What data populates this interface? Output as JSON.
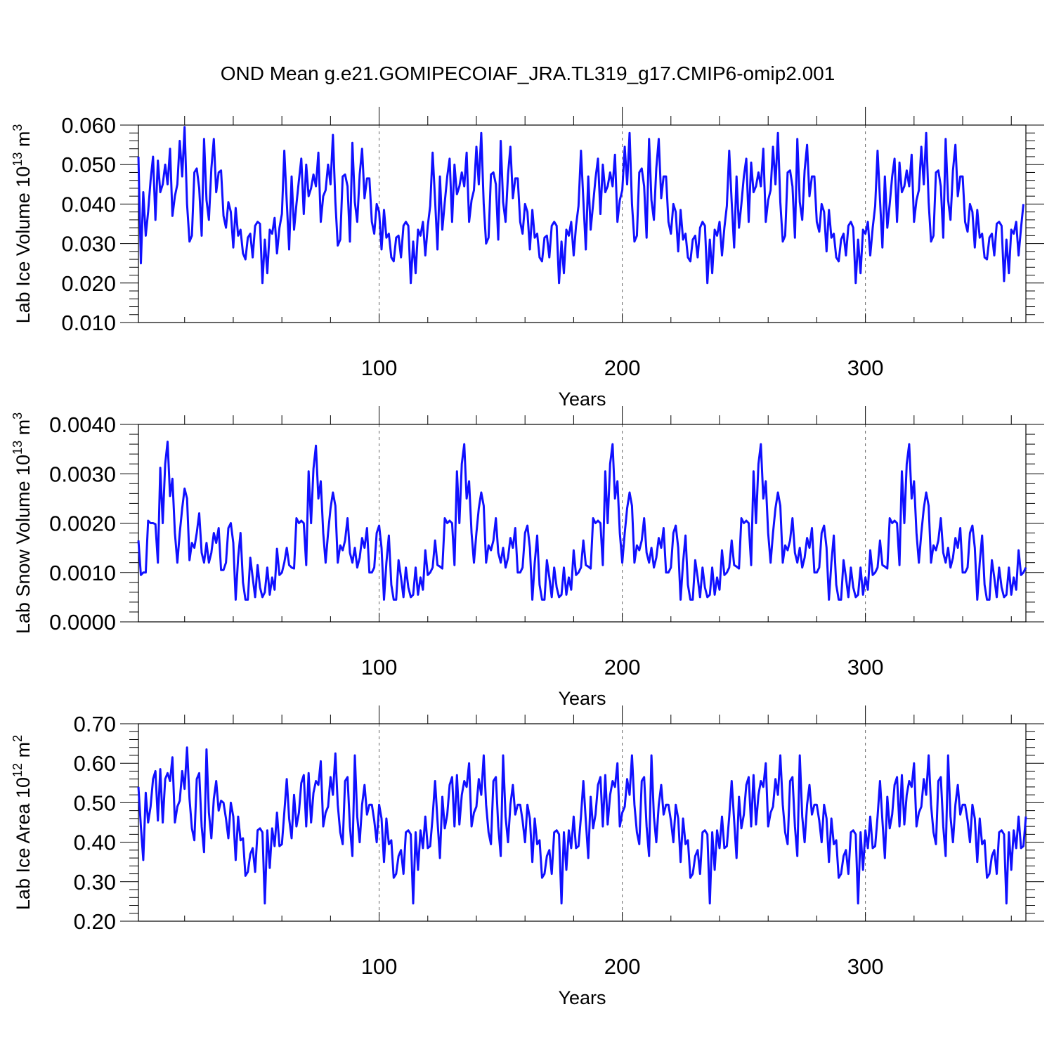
{
  "figure": {
    "title": "OND Mean g.e21.GOMIPECOIAF_JRA.TL319_g17.CMIP6-omip2.001"
  },
  "chart_data": [
    {
      "type": "line",
      "name": "ice-volume",
      "title": "OND Mean g.e21.GOMIPECOIAF_JRA.TL319_g17.CMIP6-omip2.001",
      "xlabel": "Years",
      "ylabel_text": "Lab Ice Volume 10",
      "ylabel_exp": "13",
      "ylabel_unit": " m",
      "ylabel_unit_exp": "3",
      "xlim": [
        1,
        366
      ],
      "ylim": [
        0.01,
        0.06
      ],
      "xticks": [
        100,
        200,
        300
      ],
      "xtick_labels": [
        "100",
        "200",
        "300"
      ],
      "yticks": [
        0.01,
        0.02,
        0.03,
        0.04,
        0.05,
        0.06
      ],
      "ytick_labels": [
        "0.010",
        "0.020",
        "0.030",
        "0.040",
        "0.050",
        "0.060"
      ],
      "color": "#1010ff",
      "x_start": 1,
      "values": [
        0.052,
        0.025,
        0.043,
        0.032,
        0.038,
        0.046,
        0.052,
        0.036,
        0.051,
        0.043,
        0.045,
        0.05,
        0.045,
        0.054,
        0.037,
        0.042,
        0.045,
        0.056,
        0.047,
        0.0595,
        0.04,
        0.0305,
        0.032,
        0.048,
        0.049,
        0.044,
        0.032,
        0.0565,
        0.041,
        0.036,
        0.049,
        0.0565,
        0.043,
        0.048,
        0.0485,
        0.037,
        0.034,
        0.0405,
        0.038,
        0.029,
        0.039,
        0.032,
        0.0335,
        0.0275,
        0.026,
        0.0315,
        0.0325,
        0.0265,
        0.0345,
        0.0355,
        0.035,
        0.02,
        0.031,
        0.0225,
        0.0335,
        0.0325,
        0.0365,
        0.0275,
        0.034,
        0.0375,
        0.0535,
        0.0405,
        0.0285,
        0.047,
        0.0335,
        0.04,
        0.046,
        0.0515,
        0.0375,
        0.05,
        0.042,
        0.044,
        0.0475,
        0.0445,
        0.053,
        0.0355,
        0.042,
        0.0435,
        0.05,
        0.045,
        0.0575,
        0.0405,
        0.0295,
        0.031,
        0.047,
        0.0475,
        0.0445,
        0.0305,
        0.0555,
        0.0405,
        0.0355,
        0.0475,
        0.054,
        0.0415,
        0.0465,
        0.0465,
        0.0355,
        0.0325,
        0.04,
        0.038,
        0.0285,
        0.0385,
        0.0315,
        0.0325,
        0.0265,
        0.0255,
        0.0315,
        0.032,
        0.0265,
        0.0345,
        0.0355,
        0.0345,
        0.02,
        0.0305,
        0.0225,
        0.0335,
        0.032,
        0.0355,
        0.027,
        0.0345,
        0.0395,
        0.053,
        0.041,
        0.0285,
        0.047,
        0.0335,
        0.0405,
        0.047,
        0.0515,
        0.0355,
        0.05,
        0.0425,
        0.0445,
        0.048,
        0.0445,
        0.053,
        0.0355,
        0.041,
        0.0435,
        0.0545,
        0.045,
        0.058,
        0.04,
        0.03,
        0.0315,
        0.0475,
        0.048,
        0.045,
        0.031,
        0.056,
        0.0405,
        0.0355,
        0.0475,
        0.0545,
        0.0415,
        0.0465,
        0.0465,
        0.0355,
        0.0325,
        0.04,
        0.038,
        0.0285,
        0.0385,
        0.0315,
        0.0325,
        0.0265,
        0.0255,
        0.0315,
        0.032,
        0.0265,
        0.0345,
        0.0355,
        0.0345,
        0.02,
        0.0305,
        0.0225,
        0.0335,
        0.032,
        0.0355,
        0.027,
        0.0345,
        0.0395,
        0.0535,
        0.041,
        0.0285,
        0.047,
        0.0335,
        0.04,
        0.0465,
        0.0515,
        0.0375,
        0.05,
        0.043,
        0.0445,
        0.048,
        0.0445,
        0.0525,
        0.0355,
        0.041,
        0.0435,
        0.0545,
        0.045,
        0.058,
        0.04,
        0.0305,
        0.032,
        0.048,
        0.049,
        0.0445,
        0.0315,
        0.0565,
        0.041,
        0.036,
        0.049,
        0.0565,
        0.0415,
        0.047,
        0.047,
        0.0355,
        0.0325,
        0.04,
        0.038,
        0.028,
        0.0385,
        0.031,
        0.0325,
        0.0265,
        0.0255,
        0.031,
        0.032,
        0.0265,
        0.034,
        0.0355,
        0.0345,
        0.02,
        0.031,
        0.0225,
        0.0335,
        0.032,
        0.0355,
        0.027,
        0.034,
        0.0395,
        0.0535,
        0.0405,
        0.029,
        0.047,
        0.034,
        0.04,
        0.047,
        0.0515,
        0.0355,
        0.0505,
        0.043,
        0.0445,
        0.048,
        0.0445,
        0.054,
        0.0355,
        0.041,
        0.0435,
        0.0545,
        0.045,
        0.058,
        0.0405,
        0.0305,
        0.032,
        0.048,
        0.0485,
        0.0445,
        0.0315,
        0.0565,
        0.0405,
        0.036,
        0.0485,
        0.055,
        0.042,
        0.047,
        0.047,
        0.0355,
        0.033,
        0.04,
        0.038,
        0.028,
        0.0385,
        0.0315,
        0.0325,
        0.0265,
        0.0255,
        0.031,
        0.0325,
        0.027,
        0.0345,
        0.0355,
        0.034,
        0.02,
        0.031,
        0.0225,
        0.0335,
        0.0325,
        0.0355,
        0.027,
        0.034,
        0.0395,
        0.0535,
        0.041,
        0.029,
        0.047,
        0.034,
        0.04,
        0.047,
        0.0515,
        0.0355,
        0.0505,
        0.043,
        0.0445,
        0.0485,
        0.0445,
        0.0525,
        0.0355,
        0.041,
        0.0435,
        0.0545,
        0.045,
        0.058,
        0.0405,
        0.0305,
        0.032,
        0.048,
        0.0485,
        0.0445,
        0.0315,
        0.0565,
        0.041,
        0.036,
        0.0485,
        0.055,
        0.042,
        0.047,
        0.047,
        0.0355,
        0.033,
        0.04,
        0.038,
        0.029,
        0.0385,
        0.0315,
        0.0325,
        0.0265,
        0.026,
        0.0315,
        0.0325,
        0.027,
        0.035,
        0.0355,
        0.0345,
        0.0205,
        0.031,
        0.0225,
        0.0335,
        0.0325,
        0.0355,
        0.027,
        0.034,
        0.04
      ]
    },
    {
      "type": "line",
      "name": "snow-volume",
      "xlabel": "Years",
      "ylabel_text": "Lab Snow Volume 10",
      "ylabel_exp": "13",
      "ylabel_unit": " m",
      "ylabel_unit_exp": "3",
      "xlim": [
        1,
        366
      ],
      "ylim": [
        0.0,
        0.004
      ],
      "xticks": [
        100,
        200,
        300
      ],
      "xtick_labels": [
        "100",
        "200",
        "300"
      ],
      "yticks": [
        0.0,
        0.001,
        0.002,
        0.003,
        0.004
      ],
      "ytick_labels": [
        "0.0000",
        "0.0010",
        "0.0020",
        "0.0030",
        "0.0040"
      ],
      "color": "#1010ff",
      "x_start": 1,
      "values": [
        0.00165,
        0.00095,
        0.001,
        0.001,
        0.00205,
        0.002,
        0.002,
        0.00198,
        0.0012,
        0.00312,
        0.002,
        0.0032,
        0.00365,
        0.00255,
        0.0029,
        0.0018,
        0.0012,
        0.0018,
        0.0023,
        0.0027,
        0.0025,
        0.00125,
        0.0016,
        0.0015,
        0.0018,
        0.0022,
        0.0014,
        0.0012,
        0.0016,
        0.0012,
        0.0014,
        0.0018,
        0.0016,
        0.0019,
        0.00105,
        0.00105,
        0.0012,
        0.0019,
        0.002,
        0.0016,
        0.00045,
        0.0013,
        0.0018,
        0.0008,
        0.00045,
        0.00045,
        0.0013,
        0.0009,
        0.0005,
        0.00115,
        0.0007,
        0.0005,
        0.0006,
        0.0011,
        0.00055,
        0.0009,
        0.00065,
        0.00148,
        0.00095,
        0.001,
        0.0012,
        0.0015,
        0.00115,
        0.0011,
        0.00108,
        0.0021,
        0.002,
        0.00205,
        0.002,
        0.00115,
        0.00305,
        0.002,
        0.0031,
        0.00357,
        0.0025,
        0.00285,
        0.0018,
        0.0012,
        0.0018,
        0.0023,
        0.00262,
        0.00235,
        0.0012,
        0.00155,
        0.00145,
        0.00165,
        0.0021,
        0.0014,
        0.0012,
        0.0015,
        0.0011,
        0.0013,
        0.0017,
        0.0015,
        0.0019,
        0.001,
        0.001,
        0.0011,
        0.0018,
        0.00195,
        0.0015,
        0.00045,
        0.0012,
        0.00175,
        0.00075,
        0.00045,
        0.00045,
        0.00125,
        0.0009,
        0.0005,
        0.0011,
        0.0007,
        0.0005,
        0.00055,
        0.0011,
        0.00055,
        0.0009,
        0.00065,
        0.00145,
        0.00095,
        0.001,
        0.0011,
        0.00165,
        0.00115,
        0.00112,
        0.00108,
        0.0021,
        0.002,
        0.00205,
        0.002,
        0.00115,
        0.00305,
        0.002,
        0.0032,
        0.0036,
        0.0025,
        0.00285,
        0.0018,
        0.0012,
        0.0018,
        0.0023,
        0.00262,
        0.00235,
        0.0012,
        0.00155,
        0.00145,
        0.00165,
        0.0021,
        0.0014,
        0.0012,
        0.0015,
        0.0011,
        0.0013,
        0.0017,
        0.0015,
        0.0019,
        0.001,
        0.001,
        0.0011,
        0.0018,
        0.00195,
        0.0015,
        0.00045,
        0.0012,
        0.00175,
        0.00075,
        0.00045,
        0.00045,
        0.00125,
        0.0009,
        0.0005,
        0.0011,
        0.0007,
        0.0005,
        0.00055,
        0.0011,
        0.00055,
        0.0009,
        0.00065,
        0.00145,
        0.00095,
        0.001,
        0.0011,
        0.00165,
        0.00115,
        0.00112,
        0.00108,
        0.0021,
        0.002,
        0.00205,
        0.002,
        0.00115,
        0.00305,
        0.002,
        0.0032,
        0.0036,
        0.0025,
        0.00285,
        0.0018,
        0.0012,
        0.0018,
        0.0023,
        0.00262,
        0.00235,
        0.0012,
        0.00155,
        0.00145,
        0.00165,
        0.0021,
        0.0014,
        0.0012,
        0.0015,
        0.0011,
        0.0013,
        0.0017,
        0.0015,
        0.0019,
        0.001,
        0.001,
        0.0011,
        0.0018,
        0.00195,
        0.0015,
        0.00045,
        0.0012,
        0.00175,
        0.00075,
        0.00045,
        0.00045,
        0.00125,
        0.0009,
        0.0005,
        0.0011,
        0.0007,
        0.0005,
        0.00055,
        0.0011,
        0.00055,
        0.0009,
        0.00065,
        0.00145,
        0.00095,
        0.001,
        0.0011,
        0.00165,
        0.00115,
        0.00112,
        0.00108,
        0.0021,
        0.002,
        0.00205,
        0.002,
        0.00115,
        0.00305,
        0.002,
        0.0032,
        0.0036,
        0.0025,
        0.00285,
        0.0018,
        0.0012,
        0.0018,
        0.0023,
        0.00262,
        0.00235,
        0.0012,
        0.00155,
        0.00145,
        0.00165,
        0.0021,
        0.0014,
        0.0012,
        0.0015,
        0.0011,
        0.0013,
        0.0017,
        0.0015,
        0.0019,
        0.001,
        0.001,
        0.0011,
        0.0018,
        0.00195,
        0.0015,
        0.00045,
        0.0012,
        0.00175,
        0.00075,
        0.00045,
        0.00045,
        0.00125,
        0.0009,
        0.0005,
        0.0011,
        0.0007,
        0.0005,
        0.00055,
        0.0011,
        0.00055,
        0.0009,
        0.00065,
        0.00145,
        0.00095,
        0.001,
        0.0011,
        0.00165,
        0.00115,
        0.00112,
        0.00108,
        0.0021,
        0.002,
        0.00205,
        0.002,
        0.00115,
        0.00305,
        0.002,
        0.0032,
        0.0036,
        0.0025,
        0.00285,
        0.0018,
        0.0012,
        0.0018,
        0.0023,
        0.00262,
        0.00235,
        0.0012,
        0.00155,
        0.00145,
        0.00165,
        0.0021,
        0.0014,
        0.0012,
        0.0015,
        0.0011,
        0.0013,
        0.0017,
        0.0015,
        0.0019,
        0.001,
        0.001,
        0.0011,
        0.0018,
        0.00195,
        0.0015,
        0.00045,
        0.0012,
        0.00175,
        0.00075,
        0.00045,
        0.00045,
        0.00125,
        0.0009,
        0.0005,
        0.0011,
        0.0007,
        0.0005,
        0.00055,
        0.0011,
        0.00055,
        0.0009,
        0.00065,
        0.00145,
        0.00095,
        0.001,
        0.0011
      ]
    },
    {
      "type": "line",
      "name": "ice-area",
      "xlabel": "Years",
      "ylabel_text": "Lab Ice Area 10",
      "ylabel_exp": "12",
      "ylabel_unit": " m",
      "ylabel_unit_exp": "2",
      "xlim": [
        1,
        366
      ],
      "ylim": [
        0.2,
        0.7
      ],
      "xticks": [
        100,
        200,
        300
      ],
      "xtick_labels": [
        "100",
        "200",
        "300"
      ],
      "yticks": [
        0.2,
        0.3,
        0.4,
        0.5,
        0.6,
        0.7
      ],
      "ytick_labels": [
        "0.20",
        "0.30",
        "0.40",
        "0.50",
        "0.60",
        "0.70"
      ],
      "color": "#1010ff",
      "x_start": 1,
      "values": [
        0.54,
        0.44,
        0.355,
        0.525,
        0.45,
        0.49,
        0.56,
        0.58,
        0.455,
        0.585,
        0.45,
        0.56,
        0.575,
        0.555,
        0.615,
        0.45,
        0.49,
        0.505,
        0.58,
        0.535,
        0.64,
        0.51,
        0.435,
        0.405,
        0.56,
        0.575,
        0.44,
        0.375,
        0.635,
        0.475,
        0.41,
        0.51,
        0.555,
        0.48,
        0.505,
        0.5,
        0.46,
        0.41,
        0.5,
        0.465,
        0.355,
        0.465,
        0.405,
        0.41,
        0.315,
        0.325,
        0.37,
        0.385,
        0.325,
        0.43,
        0.435,
        0.425,
        0.245,
        0.43,
        0.335,
        0.435,
        0.39,
        0.475,
        0.39,
        0.395,
        0.475,
        0.56,
        0.46,
        0.41,
        0.52,
        0.44,
        0.475,
        0.55,
        0.57,
        0.44,
        0.575,
        0.45,
        0.525,
        0.555,
        0.545,
        0.605,
        0.44,
        0.475,
        0.49,
        0.565,
        0.52,
        0.625,
        0.495,
        0.425,
        0.395,
        0.555,
        0.565,
        0.44,
        0.365,
        0.62,
        0.465,
        0.4,
        0.495,
        0.545,
        0.47,
        0.495,
        0.495,
        0.455,
        0.4,
        0.495,
        0.46,
        0.35,
        0.46,
        0.395,
        0.405,
        0.31,
        0.32,
        0.365,
        0.38,
        0.32,
        0.425,
        0.43,
        0.42,
        0.245,
        0.425,
        0.33,
        0.43,
        0.385,
        0.465,
        0.385,
        0.39,
        0.465,
        0.555,
        0.455,
        0.36,
        0.515,
        0.435,
        0.47,
        0.545,
        0.565,
        0.44,
        0.57,
        0.445,
        0.52,
        0.555,
        0.54,
        0.6,
        0.44,
        0.475,
        0.49,
        0.56,
        0.52,
        0.62,
        0.495,
        0.425,
        0.395,
        0.555,
        0.565,
        0.44,
        0.365,
        0.62,
        0.465,
        0.4,
        0.495,
        0.545,
        0.47,
        0.495,
        0.495,
        0.455,
        0.4,
        0.495,
        0.46,
        0.35,
        0.46,
        0.395,
        0.405,
        0.31,
        0.32,
        0.365,
        0.38,
        0.32,
        0.425,
        0.43,
        0.42,
        0.245,
        0.425,
        0.33,
        0.43,
        0.385,
        0.465,
        0.385,
        0.39,
        0.465,
        0.555,
        0.455,
        0.36,
        0.515,
        0.435,
        0.47,
        0.545,
        0.565,
        0.44,
        0.57,
        0.445,
        0.52,
        0.555,
        0.54,
        0.6,
        0.44,
        0.475,
        0.49,
        0.56,
        0.52,
        0.62,
        0.495,
        0.425,
        0.395,
        0.555,
        0.565,
        0.44,
        0.365,
        0.62,
        0.465,
        0.4,
        0.495,
        0.545,
        0.47,
        0.495,
        0.495,
        0.455,
        0.4,
        0.495,
        0.46,
        0.35,
        0.46,
        0.395,
        0.405,
        0.31,
        0.32,
        0.365,
        0.38,
        0.32,
        0.425,
        0.43,
        0.42,
        0.245,
        0.425,
        0.33,
        0.43,
        0.385,
        0.465,
        0.385,
        0.39,
        0.465,
        0.555,
        0.455,
        0.36,
        0.515,
        0.435,
        0.47,
        0.545,
        0.565,
        0.44,
        0.57,
        0.445,
        0.52,
        0.555,
        0.54,
        0.6,
        0.44,
        0.475,
        0.49,
        0.56,
        0.52,
        0.62,
        0.495,
        0.425,
        0.395,
        0.555,
        0.565,
        0.44,
        0.365,
        0.62,
        0.465,
        0.4,
        0.495,
        0.545,
        0.47,
        0.495,
        0.495,
        0.455,
        0.4,
        0.495,
        0.46,
        0.35,
        0.46,
        0.395,
        0.405,
        0.31,
        0.32,
        0.365,
        0.38,
        0.32,
        0.425,
        0.43,
        0.42,
        0.245,
        0.425,
        0.33,
        0.43,
        0.385,
        0.465,
        0.385,
        0.39,
        0.465,
        0.555,
        0.455,
        0.36,
        0.515,
        0.435,
        0.47,
        0.545,
        0.565,
        0.44,
        0.57,
        0.445,
        0.52,
        0.555,
        0.54,
        0.6,
        0.44,
        0.475,
        0.49,
        0.56,
        0.52,
        0.62,
        0.495,
        0.425,
        0.395,
        0.555,
        0.565,
        0.44,
        0.365,
        0.62,
        0.465,
        0.4,
        0.495,
        0.545,
        0.47,
        0.495,
        0.495,
        0.455,
        0.4,
        0.495,
        0.46,
        0.35,
        0.46,
        0.395,
        0.405,
        0.31,
        0.32,
        0.365,
        0.38,
        0.32,
        0.425,
        0.43,
        0.42,
        0.245,
        0.425,
        0.33,
        0.43,
        0.385,
        0.465,
        0.385,
        0.39,
        0.465
      ]
    }
  ]
}
